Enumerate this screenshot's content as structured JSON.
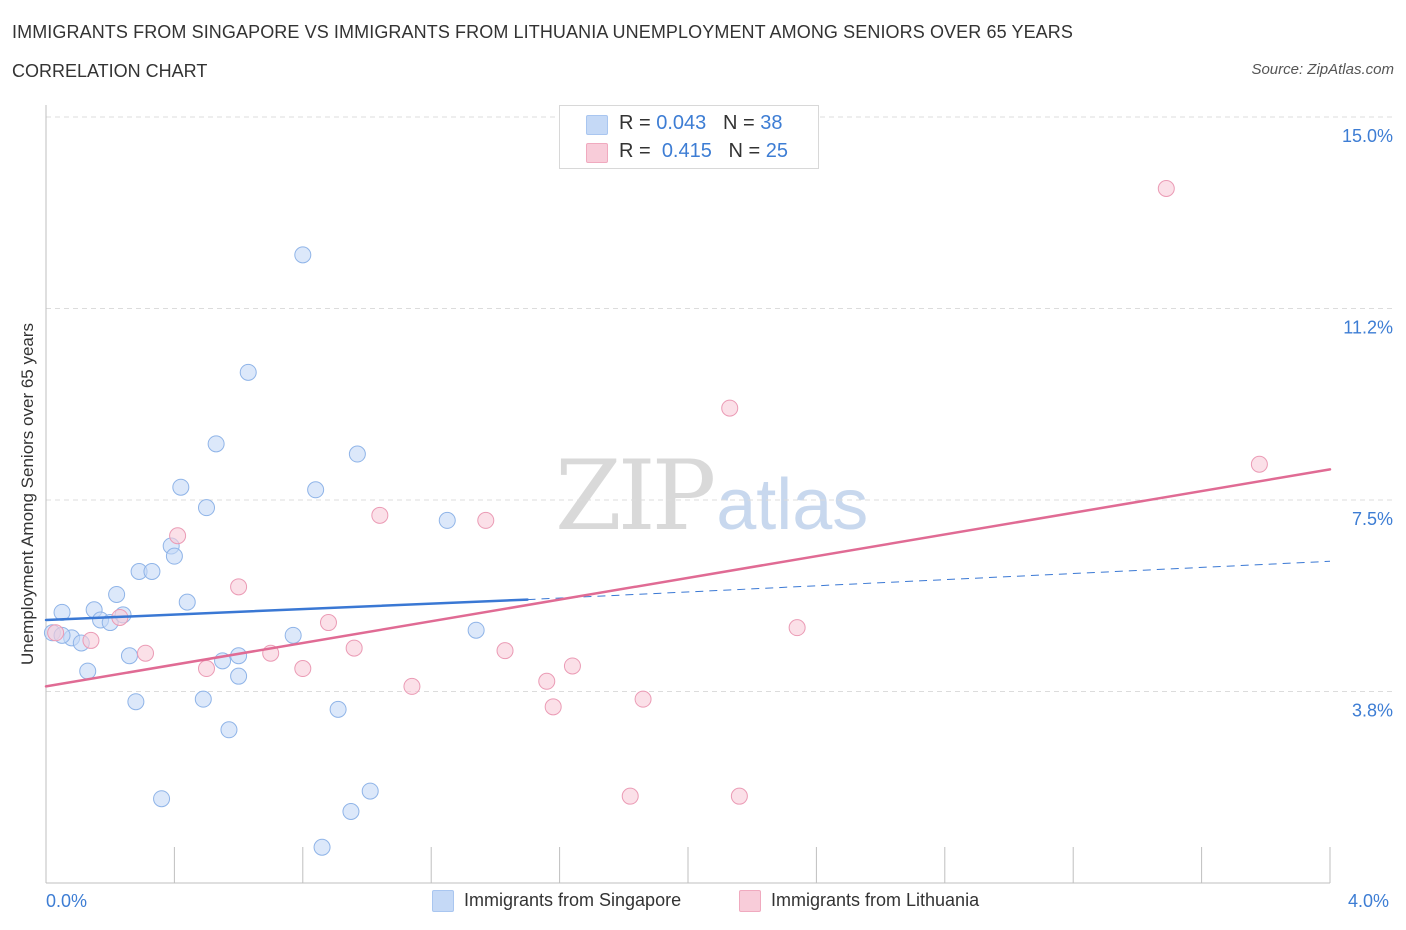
{
  "header": {
    "title": "IMMIGRANTS FROM SINGAPORE VS IMMIGRANTS FROM LITHUANIA UNEMPLOYMENT AMONG SENIORS OVER 65 YEARS",
    "subtitle": "CORRELATION CHART",
    "source": "Source: ZipAtlas.com"
  },
  "watermark": {
    "zip": "ZIP",
    "atlas": "atlas"
  },
  "legend": {
    "r_label": "R =",
    "n_label": "N =",
    "series": [
      {
        "name": "Immigrants from Singapore",
        "r": "0.043",
        "n": "38",
        "color": "#a9c6f0",
        "fill": "#c5d9f6"
      },
      {
        "name": "Immigrants from Lithuania",
        "r": "0.415",
        "n": "25",
        "color": "#f0aabf",
        "fill": "#f8ccd9"
      }
    ]
  },
  "chart_data": {
    "type": "scatter",
    "title": "IMMIGRANTS FROM SINGAPORE VS IMMIGRANTS FROM LITHUANIA UNEMPLOYMENT AMONG SENIORS OVER 65 YEARS",
    "subtitle": "CORRELATION CHART",
    "xlabel": "",
    "ylabel": "Unemployment Among Seniors over 65 years",
    "xlim": [
      0,
      4.0
    ],
    "ylim": [
      0,
      15.0
    ],
    "x_tick_labels": [
      "0.0%",
      "4.0%"
    ],
    "y_tick_labels": [
      "15.0%",
      "11.2%",
      "7.5%",
      "3.8%"
    ],
    "y_ticks": [
      15.0,
      11.25,
      7.5,
      3.75
    ],
    "grid": true,
    "legend_position": "top-center",
    "series": [
      {
        "name": "Immigrants from Singapore",
        "color": "#3a78d4",
        "points": [
          [
            0.02,
            4.9
          ],
          [
            0.05,
            5.3
          ],
          [
            0.08,
            4.8
          ],
          [
            0.11,
            4.7
          ],
          [
            0.13,
            4.15
          ],
          [
            0.15,
            5.35
          ],
          [
            0.17,
            5.15
          ],
          [
            0.2,
            5.1
          ],
          [
            0.22,
            5.65
          ],
          [
            0.24,
            5.25
          ],
          [
            0.26,
            4.45
          ],
          [
            0.28,
            3.55
          ],
          [
            0.29,
            6.1
          ],
          [
            0.33,
            6.1
          ],
          [
            0.36,
            1.65
          ],
          [
            0.39,
            6.6
          ],
          [
            0.4,
            6.4
          ],
          [
            0.42,
            7.75
          ],
          [
            0.44,
            5.5
          ],
          [
            0.49,
            3.6
          ],
          [
            0.5,
            7.35
          ],
          [
            0.53,
            8.6
          ],
          [
            0.55,
            4.35
          ],
          [
            0.57,
            3.0
          ],
          [
            0.6,
            4.05
          ],
          [
            0.6,
            4.45
          ],
          [
            0.63,
            10.0
          ],
          [
            0.77,
            4.85
          ],
          [
            0.8,
            12.3
          ],
          [
            0.84,
            7.7
          ],
          [
            0.91,
            3.4
          ],
          [
            0.95,
            1.4
          ],
          [
            0.97,
            8.4
          ],
          [
            1.01,
            1.8
          ],
          [
            0.86,
            0.7
          ],
          [
            1.25,
            7.1
          ],
          [
            1.34,
            4.95
          ],
          [
            0.05,
            4.85
          ]
        ],
        "trend": {
          "x": [
            0.0,
            1.5
          ],
          "y": [
            5.15,
            5.55
          ]
        },
        "trend_extension": {
          "x": [
            1.5,
            4.0
          ],
          "y": [
            5.55,
            6.3
          ]
        }
      },
      {
        "name": "Immigrants from Lithuania",
        "color": "#e06b94",
        "points": [
          [
            0.03,
            4.9
          ],
          [
            0.14,
            4.75
          ],
          [
            0.23,
            5.2
          ],
          [
            0.31,
            4.5
          ],
          [
            0.41,
            6.8
          ],
          [
            0.5,
            4.2
          ],
          [
            0.6,
            5.8
          ],
          [
            0.7,
            4.5
          ],
          [
            0.8,
            4.2
          ],
          [
            0.88,
            5.1
          ],
          [
            0.96,
            4.6
          ],
          [
            1.04,
            7.2
          ],
          [
            1.14,
            3.85
          ],
          [
            1.37,
            7.1
          ],
          [
            1.43,
            4.55
          ],
          [
            1.56,
            3.95
          ],
          [
            1.58,
            3.45
          ],
          [
            1.64,
            4.25
          ],
          [
            1.82,
            1.7
          ],
          [
            1.86,
            3.6
          ],
          [
            2.13,
            9.3
          ],
          [
            2.16,
            1.7
          ],
          [
            2.34,
            5.0
          ],
          [
            3.49,
            13.6
          ],
          [
            3.78,
            8.2
          ]
        ],
        "trend": {
          "x": [
            0.0,
            4.0
          ],
          "y": [
            3.85,
            8.1
          ]
        }
      }
    ]
  }
}
